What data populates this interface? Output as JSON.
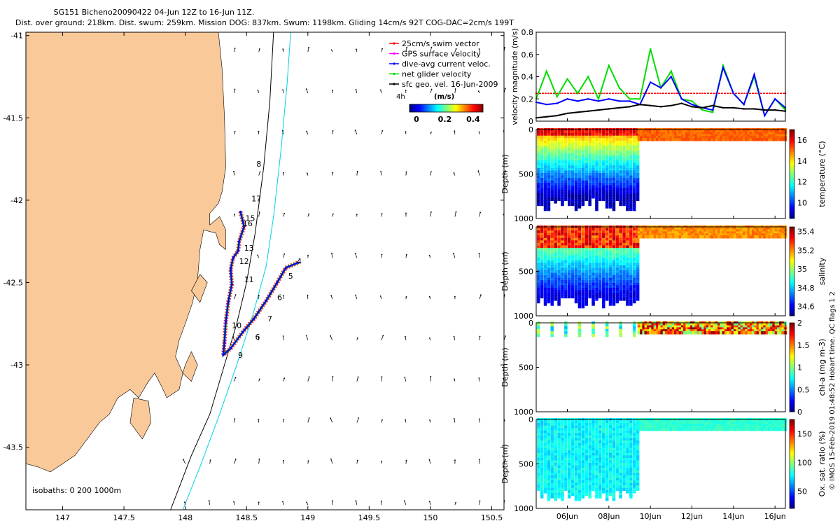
{
  "title": {
    "line1": "SG151 Bicheno20090422 04-Jun 12Z to 16-Jun 11Z.",
    "line2": "Dist. over ground: 218km. Dist. swum: 259km. Mission DOG: 837km. Swum: 1198km. Gliding 14cm/s 92T COG-DAC=2cm/s 199T"
  },
  "legend": {
    "items": [
      {
        "label": "25cm/s swim vector",
        "color": "#ff0000"
      },
      {
        "label": "GPS surface velocity",
        "color": "#ff00ff"
      },
      {
        "label": "dive-avg current veloc.",
        "color": "#0000ff"
      },
      {
        "label": "net glider velocity",
        "color": "#00dd00"
      },
      {
        "label": "sfc geo. vel. 16-Jun-2009",
        "color": "#000000"
      }
    ],
    "age_label": "4h",
    "colorbar_title": "(m/s)",
    "colorbar_ticks": [
      "0",
      "0.2",
      "0.4"
    ]
  },
  "isobaths_label": "isobaths: 0   200   1000m",
  "chart_data": [
    {
      "type": "scatter",
      "name": "map",
      "xlim": [
        146.7,
        150.6
      ],
      "ylim": [
        -43.88,
        -40.98
      ],
      "x_ticks": [
        "147",
        "147.5",
        "148",
        "148.5",
        "149",
        "149.5",
        "150",
        "150.5"
      ],
      "x_tick_values": [
        147,
        147.5,
        148,
        148.5,
        149,
        149.5,
        150,
        150.5
      ],
      "y_ticks": [
        "-41",
        "-41.5",
        "-42",
        "-42.5",
        "-43",
        "-43.5"
      ],
      "y_tick_values": [
        -41,
        -41.5,
        -42,
        -42.5,
        -43,
        -43.5
      ],
      "land_color": "#f9c99a",
      "track": [
        {
          "lon": 148.45,
          "lat": -42.07
        },
        {
          "lon": 148.48,
          "lat": -42.16
        },
        {
          "lon": 148.44,
          "lat": -42.25
        },
        {
          "lon": 148.43,
          "lat": -42.31
        },
        {
          "lon": 148.39,
          "lat": -42.35
        },
        {
          "lon": 148.37,
          "lat": -42.42
        },
        {
          "lon": 148.38,
          "lat": -42.51
        },
        {
          "lon": 148.35,
          "lat": -42.62
        },
        {
          "lon": 148.33,
          "lat": -42.74
        },
        {
          "lon": 148.32,
          "lat": -42.86
        },
        {
          "lon": 148.31,
          "lat": -42.94
        },
        {
          "lon": 148.37,
          "lat": -42.9
        },
        {
          "lon": 148.47,
          "lat": -42.8
        },
        {
          "lon": 148.56,
          "lat": -42.72
        },
        {
          "lon": 148.66,
          "lat": -42.61
        },
        {
          "lon": 148.75,
          "lat": -42.5
        },
        {
          "lon": 148.82,
          "lat": -42.41
        },
        {
          "lon": 148.92,
          "lat": -42.38
        }
      ],
      "day_labels": [
        {
          "text": "4",
          "lon": 148.93,
          "lat": -42.37
        },
        {
          "text": "5",
          "lon": 148.86,
          "lat": -42.46
        },
        {
          "text": "6",
          "lon": 148.77,
          "lat": -42.59
        },
        {
          "text": "7",
          "lon": 148.69,
          "lat": -42.72
        },
        {
          "text": "6",
          "lon": 148.59,
          "lat": -42.83
        },
        {
          "text": "9",
          "lon": 148.45,
          "lat": -42.94
        },
        {
          "text": "10",
          "lon": 148.42,
          "lat": -42.76
        },
        {
          "text": "11",
          "lon": 148.52,
          "lat": -42.48
        },
        {
          "text": "12",
          "lon": 148.48,
          "lat": -42.37
        },
        {
          "text": "13",
          "lon": 148.52,
          "lat": -42.29
        },
        {
          "text": "16",
          "lon": 148.51,
          "lat": -42.14
        },
        {
          "text": "15",
          "lon": 148.53,
          "lat": -42.11
        },
        {
          "text": "17",
          "lon": 148.58,
          "lat": -41.99
        },
        {
          "text": "8",
          "lon": 148.6,
          "lat": -41.78
        }
      ]
    },
    {
      "type": "line",
      "name": "velocity",
      "ylabel": "velocity magnitude (m/s)",
      "ylim": [
        0,
        0.8
      ],
      "y_ticks": [
        "0",
        "0.2",
        "0.4",
        "0.6",
        "0.8"
      ],
      "y_tick_values": [
        0,
        0.2,
        0.4,
        0.6,
        0.8
      ],
      "xlim": [
        4.5,
        16.5
      ],
      "series": [
        {
          "color": "#ff0000",
          "x": [
            4.5,
            16.5
          ],
          "values": [
            0.25,
            0.25
          ]
        },
        {
          "color": "#00dd00",
          "x": [
            4.5,
            5.0,
            5.5,
            6.0,
            6.5,
            7.0,
            7.5,
            8.0,
            8.5,
            9.0,
            9.5,
            10.0,
            10.5,
            11.0,
            11.5,
            12.0,
            12.5,
            13.0,
            13.5,
            14.0,
            14.5,
            15.0,
            15.5,
            16.0,
            16.5
          ],
          "values": [
            0.2,
            0.45,
            0.22,
            0.38,
            0.25,
            0.4,
            0.2,
            0.5,
            0.3,
            0.2,
            0.2,
            0.65,
            0.3,
            0.45,
            0.2,
            0.18,
            0.1,
            0.08,
            0.5,
            0.25,
            0.15,
            0.4,
            0.05,
            0.2,
            0.1
          ]
        },
        {
          "color": "#0000ff",
          "x": [
            4.5,
            5.0,
            5.5,
            6.0,
            6.5,
            7.0,
            7.5,
            8.0,
            8.5,
            9.0,
            9.5,
            10.0,
            10.5,
            11.0,
            11.5,
            12.0,
            12.5,
            13.0,
            13.5,
            14.0,
            14.5,
            15.0,
            15.5,
            16.0,
            16.5
          ],
          "values": [
            0.17,
            0.15,
            0.16,
            0.2,
            0.18,
            0.2,
            0.18,
            0.2,
            0.18,
            0.18,
            0.15,
            0.35,
            0.3,
            0.4,
            0.2,
            0.15,
            0.12,
            0.1,
            0.48,
            0.25,
            0.15,
            0.42,
            0.05,
            0.2,
            0.12
          ]
        },
        {
          "color": "#000000",
          "x": [
            4.5,
            5.0,
            5.5,
            6.0,
            6.5,
            7.0,
            7.5,
            8.0,
            8.5,
            9.0,
            9.5,
            10.0,
            10.5,
            11.0,
            11.5,
            12.0,
            12.5,
            13.0,
            13.5,
            14.0,
            14.5,
            15.0,
            15.5,
            16.0,
            16.5
          ],
          "values": [
            0.03,
            0.04,
            0.05,
            0.07,
            0.08,
            0.09,
            0.1,
            0.11,
            0.12,
            0.13,
            0.15,
            0.14,
            0.13,
            0.14,
            0.16,
            0.13,
            0.12,
            0.14,
            0.12,
            0.12,
            0.11,
            0.11,
            0.1,
            0.1,
            0.09
          ]
        }
      ]
    },
    {
      "type": "heatmap",
      "name": "temperature",
      "ylabel": "Depth (m)",
      "ylim": [
        0,
        1000
      ],
      "y_ticks": [
        "0",
        "500",
        "1000"
      ],
      "y_tick_values": [
        0,
        500,
        1000
      ],
      "colorbar_label": "temperature (°C)",
      "colorbar_ticks": [
        "10",
        "12",
        "14",
        "16"
      ],
      "colorbar_tick_values": [
        10,
        12,
        14,
        16
      ],
      "clim": [
        8.5,
        17
      ],
      "surface_value": 15.5,
      "deep_value": 9
    },
    {
      "type": "heatmap",
      "name": "salinity",
      "ylabel": "Depth (m)",
      "ylim": [
        0,
        1000
      ],
      "y_ticks": [
        "0",
        "500",
        "1000"
      ],
      "y_tick_values": [
        0,
        500,
        1000
      ],
      "colorbar_label": "salinity",
      "colorbar_ticks": [
        "34.6",
        "34.8",
        "35",
        "35.2",
        "35.4"
      ],
      "colorbar_tick_values": [
        34.6,
        34.8,
        35,
        35.2,
        35.4
      ],
      "clim": [
        34.5,
        35.45
      ],
      "surface_value": 35.2,
      "deep_value": 34.6
    },
    {
      "type": "heatmap",
      "name": "chl-a",
      "ylabel": "Depth (m)",
      "ylim": [
        0,
        1000
      ],
      "y_ticks": [
        "0",
        "500",
        "1000"
      ],
      "y_tick_values": [
        0,
        500,
        1000
      ],
      "colorbar_label": "chl-a (mg m-3)",
      "colorbar_ticks": [
        "0",
        "0.5",
        "1",
        "1.5",
        "2"
      ],
      "colorbar_tick_values": [
        0,
        0.5,
        1,
        1.5,
        2
      ],
      "clim": [
        0,
        2
      ],
      "surface_value": 1.9,
      "deep_value": 0.5
    },
    {
      "type": "heatmap",
      "name": "oxygen",
      "ylabel": "Depth (m)",
      "ylim": [
        0,
        1000
      ],
      "y_ticks": [
        "0",
        "500",
        "1000"
      ],
      "y_tick_values": [
        0,
        500,
        1000
      ],
      "colorbar_label": "Ox. sat. ratio (%)",
      "colorbar_ticks": [
        "50",
        "100",
        "150"
      ],
      "colorbar_tick_values": [
        50,
        100,
        150
      ],
      "clim": [
        20,
        175
      ],
      "surface_value": 80,
      "deep_value": 70
    }
  ],
  "time_axis": {
    "ticks": [
      "06Jun",
      "08Jun",
      "10Jun",
      "12Jun",
      "14Jun",
      "16Jun"
    ],
    "tick_days": [
      6,
      8,
      10,
      12,
      14,
      16
    ]
  },
  "side_note": "© IMOS 15-Feb-2019 01:48:52 Hobart time. QC flags 1  2"
}
